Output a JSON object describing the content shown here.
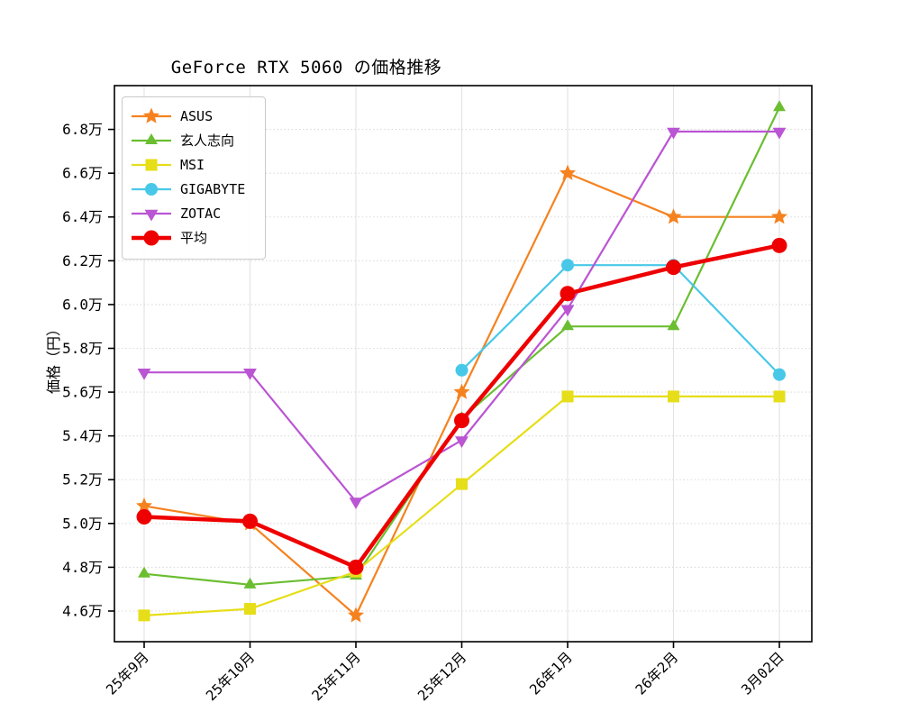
{
  "chart_data": {
    "type": "line",
    "title": "GeForce RTX 5060 の価格推移",
    "xlabel": "",
    "ylabel": "価格（円）",
    "unit_suffix": "万",
    "categories": [
      "25年9月",
      "25年10月",
      "25年11月",
      "25年12月",
      "26年1月",
      "26年2月",
      "3月02日"
    ],
    "x_tick_rotation": 45,
    "y_tick_labels": [
      "4.6万",
      "4.8万",
      "5.0万",
      "5.2万",
      "5.4万",
      "5.6万",
      "5.8万",
      "6.0万",
      "6.2万",
      "6.4万",
      "6.6万",
      "6.8万"
    ],
    "y_tick_values": [
      4.6,
      4.8,
      5.0,
      5.2,
      5.4,
      5.6,
      5.8,
      6.0,
      6.2,
      6.4,
      6.6,
      6.8
    ],
    "ylim": [
      4.46,
      7.0
    ],
    "grid": true,
    "legend_position": "upper-left",
    "series": [
      {
        "name": "ASUS",
        "color": "#f5821f",
        "marker": "star",
        "emphasis": false,
        "values": [
          5.08,
          5.0,
          4.58,
          5.6,
          6.6,
          6.4,
          6.4
        ]
      },
      {
        "name": "玄人志向",
        "color": "#6abe30",
        "marker": "triangle-up",
        "emphasis": false,
        "values": [
          4.77,
          4.72,
          4.76,
          5.48,
          5.9,
          5.9,
          6.9
        ]
      },
      {
        "name": "MSI",
        "color": "#e6de18",
        "marker": "square",
        "emphasis": false,
        "values": [
          4.58,
          4.61,
          4.78,
          5.18,
          5.58,
          5.58,
          5.58
        ]
      },
      {
        "name": "GIGABYTE",
        "color": "#48c8e8",
        "marker": "circle",
        "emphasis": false,
        "values": [
          null,
          null,
          null,
          5.7,
          6.18,
          6.18,
          5.68
        ]
      },
      {
        "name": "ZOTAC",
        "color": "#ba55d3",
        "marker": "triangle-down",
        "emphasis": false,
        "values": [
          5.69,
          5.69,
          5.1,
          5.38,
          5.98,
          6.79,
          6.79
        ]
      },
      {
        "name": "平均",
        "color": "#ee0000",
        "marker": "circle",
        "emphasis": true,
        "values": [
          5.03,
          5.01,
          4.8,
          5.47,
          6.05,
          6.17,
          6.27
        ]
      }
    ]
  }
}
